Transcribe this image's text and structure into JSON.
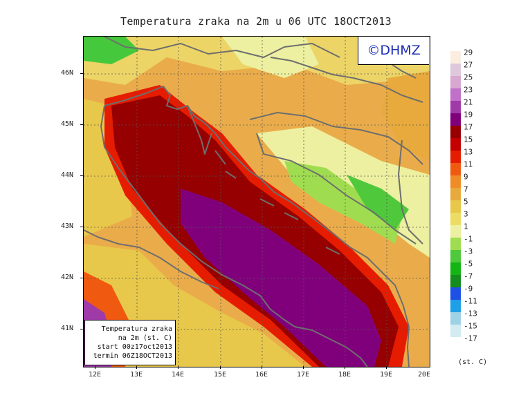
{
  "title": "Temperatura zraka na 2m u 06 UTC 18OCT2013",
  "logo": "©DHMZ",
  "info_box": {
    "line1": "Temperatura zraka",
    "line2": "na 2m (st. C)",
    "line3": "start 00z17oct2013",
    "line4": "termin 06Z18OCT2013"
  },
  "lat_ticks": [
    "46N",
    "45N",
    "44N",
    "43N",
    "42N",
    "41N"
  ],
  "lon_ticks": [
    "12E",
    "13E",
    "14E",
    "15E",
    "16E",
    "17E",
    "18E",
    "19E",
    "20E"
  ],
  "colorbar": {
    "unit": "(st. C)",
    "labels": [
      "29",
      "27",
      "25",
      "23",
      "21",
      "19",
      "17",
      "15",
      "13",
      "11",
      "9",
      "7",
      "5",
      "3",
      "1",
      "-1",
      "-3",
      "-5",
      "-7",
      "-9",
      "-11",
      "-13",
      "-15",
      "-17"
    ],
    "colors": [
      "#fbeee0",
      "#e0c8dc",
      "#d8a8d0",
      "#c070c8",
      "#a03aa8",
      "#80007c",
      "#960000",
      "#c40000",
      "#e61c00",
      "#f05a10",
      "#f08c28",
      "#e8aa3c",
      "#e8c84a",
      "#ecdc64",
      "#ecf0a0",
      "#a0dc50",
      "#50c83c",
      "#14b414",
      "#148c1e",
      "#1e50e6",
      "#1ea0e6",
      "#a0d2e6",
      "#d2ecf2",
      "#ffffff"
    ]
  },
  "colors": {
    "border_line": "#6e6e6e",
    "sea_warm": "#8a0085",
    "coast_dark": "#9a0000"
  }
}
